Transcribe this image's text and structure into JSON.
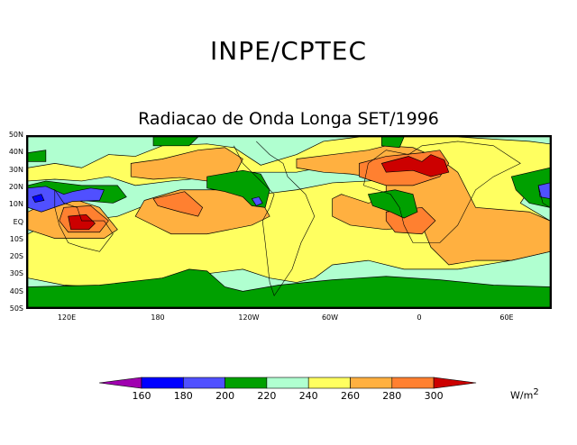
{
  "header": {
    "title": "INPE/CPTEC",
    "subtitle": "Radiacao de Onda Longa SET/1996"
  },
  "map": {
    "lat_labels": [
      "50N",
      "40N",
      "30N",
      "20N",
      "10N",
      "EQ",
      "10S",
      "20S",
      "30S",
      "40S",
      "50S"
    ],
    "lon_labels": [
      "120E",
      "180",
      "120W",
      "60W",
      "0",
      "60E"
    ]
  },
  "colorbar": {
    "levels": [
      "160",
      "180",
      "200",
      "220",
      "240",
      "260",
      "280",
      "300"
    ],
    "colors": [
      "#a000b0",
      "#0000ff",
      "#5050ff",
      "#00a000",
      "#b0ffd0",
      "#ffff60",
      "#ffb040",
      "#ff8030",
      "#cc0000"
    ],
    "units": "W/m",
    "units_exp": "2"
  }
}
